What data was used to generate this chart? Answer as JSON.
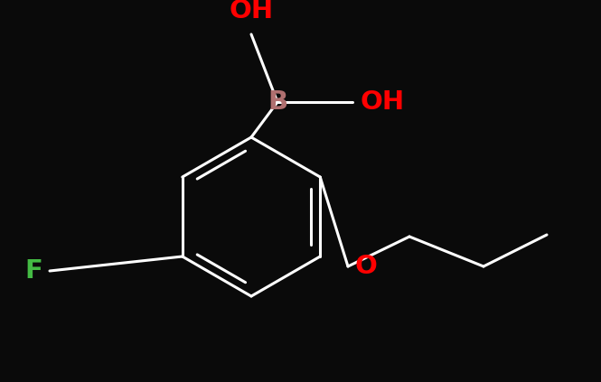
{
  "background_color": "#0a0a0a",
  "bond_color": "#ffffff",
  "bond_width": 2.2,
  "label_B": {
    "text": "B",
    "color": "#b07070",
    "fontsize": 21
  },
  "label_OH_top": {
    "text": "OH",
    "color": "#ff0000",
    "fontsize": 21
  },
  "label_OH_right": {
    "text": "OH",
    "color": "#ff0000",
    "fontsize": 21
  },
  "label_O": {
    "text": "O",
    "color": "#ff0000",
    "fontsize": 21
  },
  "label_F": {
    "text": "F",
    "color": "#44bb44",
    "fontsize": 21
  }
}
